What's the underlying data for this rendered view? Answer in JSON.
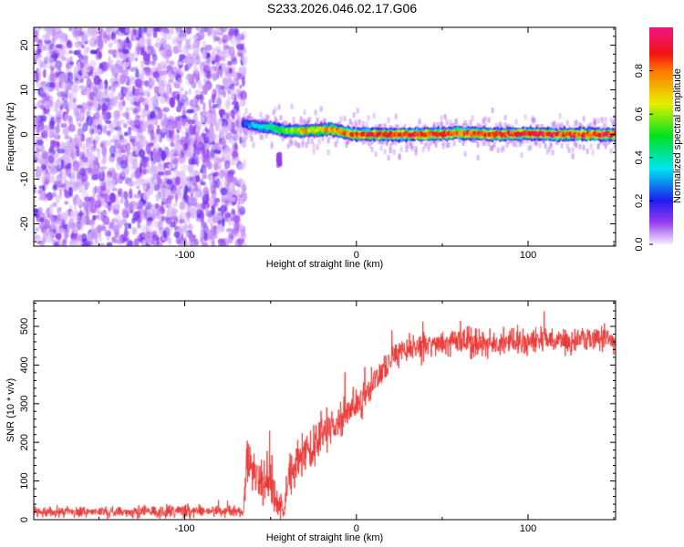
{
  "title": "S233.2026.046.02.17.G06",
  "chart_data": [
    {
      "type": "heatmap",
      "name": "spectrogram",
      "xlabel": "Height of straight line (km)",
      "ylabel": "Frequency (Hz)",
      "xlim": [
        -188,
        151
      ],
      "ylim": [
        -25,
        24
      ],
      "xticks": [
        -100,
        0,
        100
      ],
      "yticks": [
        -20,
        -10,
        0,
        10,
        20
      ],
      "noise_region_x": [
        -188,
        -65
      ],
      "signal_band": {
        "x": [
          -65,
          -60,
          -50,
          -40,
          -30,
          -20,
          -15,
          -5,
          0,
          20,
          40,
          60,
          80,
          100,
          120,
          151
        ],
        "freq": [
          2.5,
          2.0,
          1.5,
          0.8,
          0.8,
          1.0,
          1.2,
          0.3,
          0.0,
          0.0,
          0.0,
          0.3,
          0.0,
          0.2,
          0.0,
          0.0
        ],
        "amp": [
          0.25,
          0.35,
          0.45,
          0.6,
          0.75,
          0.7,
          0.8,
          0.85,
          0.9,
          0.95,
          0.9,
          0.9,
          0.95,
          0.95,
          0.9,
          0.95
        ]
      },
      "colorbar": {
        "label": "Normalized spectral amplitude",
        "range": [
          0,
          1
        ],
        "ticks": [
          "0.0",
          "0.2",
          "0.4",
          "0.6",
          "0.8"
        ]
      }
    },
    {
      "type": "line",
      "name": "snr",
      "xlabel": "Height of straight line (km)",
      "ylabel": "SNR (10 * v/v)",
      "xlim": [
        -188,
        151
      ],
      "ylim": [
        0,
        566
      ],
      "xticks": [
        -100,
        0,
        100
      ],
      "yticks": [
        0,
        100,
        200,
        300,
        400,
        500
      ],
      "color": "#e8312f",
      "series": {
        "x": [
          -188,
          -150,
          -100,
          -80,
          -66,
          -64,
          -60,
          -55,
          -50,
          -45,
          -42,
          -40,
          -35,
          -30,
          -25,
          -20,
          -15,
          -10,
          -5,
          0,
          5,
          10,
          15,
          20,
          25,
          30,
          40,
          50,
          60,
          80,
          100,
          120,
          151
        ],
        "mean": [
          20,
          20,
          22,
          22,
          22,
          140,
          120,
          90,
          100,
          40,
          20,
          110,
          150,
          180,
          190,
          210,
          240,
          260,
          280,
          300,
          320,
          360,
          390,
          410,
          430,
          440,
          450,
          455,
          460,
          460,
          460,
          462,
          465
        ],
        "noise": [
          12,
          12,
          14,
          12,
          12,
          60,
          50,
          50,
          60,
          40,
          15,
          50,
          50,
          50,
          50,
          50,
          45,
          40,
          40,
          35,
          35,
          35,
          35,
          30,
          30,
          30,
          30,
          30,
          30,
          28,
          28,
          28,
          28
        ]
      }
    }
  ]
}
